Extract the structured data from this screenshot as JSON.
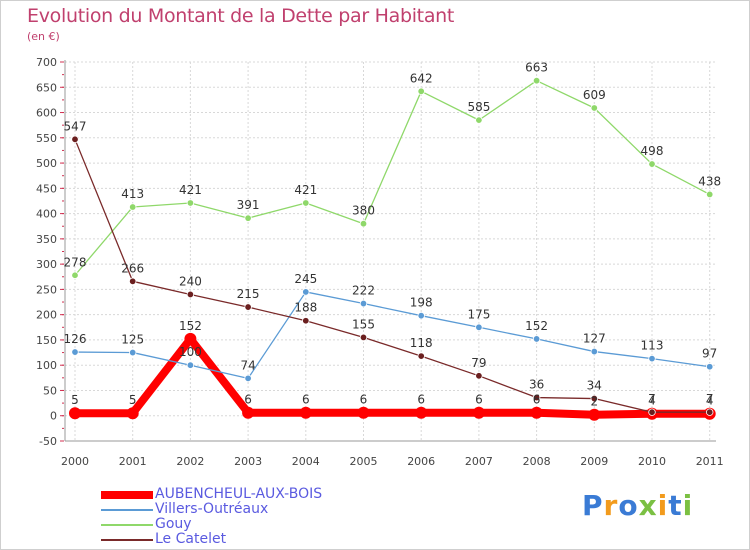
{
  "title": "Evolution du Montant de la Dette par Habitant",
  "unit_label": "(en €)",
  "logo_text": "Proxiti",
  "chart_data": {
    "type": "line",
    "x": [
      "2000",
      "2001",
      "2002",
      "2003",
      "2004",
      "2005",
      "2006",
      "2007",
      "2008",
      "2009",
      "2010",
      "2011"
    ],
    "ylim": [
      -50,
      700
    ],
    "yticks": [
      -50,
      0,
      50,
      100,
      150,
      200,
      250,
      300,
      350,
      400,
      450,
      500,
      550,
      600,
      650,
      700
    ],
    "grid": true,
    "legend_position": "bottom-left",
    "series": [
      {
        "name": "AUBENCHEUL-AUX-BOIS",
        "color": "#ff0000",
        "values": [
          5,
          5,
          152,
          6,
          6,
          6,
          6,
          6,
          6,
          2,
          4,
          4
        ],
        "labels": [
          "5",
          "5",
          "152",
          "6",
          "6",
          "6",
          "6",
          "6",
          "6",
          "2",
          "4",
          "4"
        ]
      },
      {
        "name": "Villers-Outréaux",
        "color": "#5b9bd5",
        "values": [
          126,
          125,
          100,
          74,
          245,
          222,
          198,
          175,
          152,
          127,
          113,
          97
        ],
        "labels": [
          "126",
          "125",
          "100",
          "74",
          "245",
          "222",
          "198",
          "175",
          "152",
          "127",
          "113",
          "97"
        ]
      },
      {
        "name": "Gouy",
        "color": "#8fd86a",
        "values": [
          278,
          413,
          421,
          391,
          421,
          380,
          642,
          585,
          663,
          609,
          498,
          438
        ],
        "labels": [
          "278",
          "413",
          "421",
          "391",
          "421",
          "380",
          "642",
          "585",
          "663",
          "609",
          "498",
          "438"
        ]
      },
      {
        "name": "Le Catelet",
        "color": "#7a2a2a",
        "values": [
          547,
          266,
          240,
          215,
          188,
          155,
          118,
          79,
          36,
          34,
          7,
          7
        ],
        "labels": [
          "547",
          "266",
          "240",
          "215",
          "188",
          "155",
          "118",
          "79",
          "36",
          "34",
          "7",
          "7"
        ]
      }
    ]
  }
}
